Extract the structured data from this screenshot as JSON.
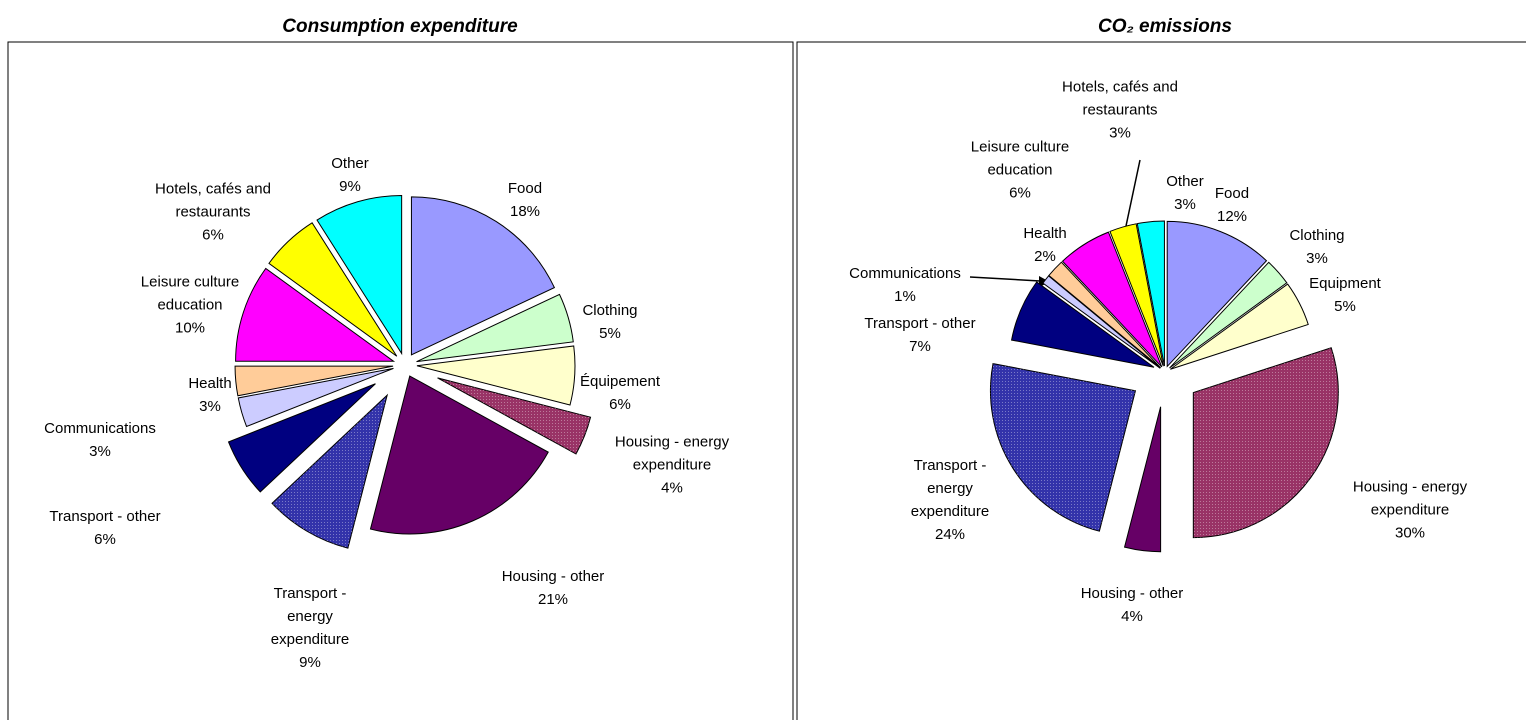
{
  "chart_data": [
    {
      "type": "pie",
      "title": "Consumption expenditure",
      "categories": [
        "Food",
        "Clothing",
        "Équipement",
        "Housing - energy expenditure",
        "Housing - other",
        "Transport - energy expenditure",
        "Transport - other",
        "Communications",
        "Health",
        "Leisure culture education",
        "Hotels, cafés and restaurants",
        "Other"
      ],
      "values": [
        18,
        5,
        6,
        4,
        21,
        9,
        6,
        3,
        3,
        10,
        6,
        9
      ],
      "value_labels": [
        "18%",
        "5%",
        "6%",
        "4%",
        "21%",
        "9%",
        "6%",
        "3%",
        "3%",
        "10%",
        "6%",
        "9%"
      ],
      "colors": [
        "#9999ff",
        "#ccffcc",
        "#ffffcc",
        "#993366",
        "#660066",
        "#3333aa",
        "#000080",
        "#ccccff",
        "#ffcc99",
        "#ff00ff",
        "#ffff00",
        "#00ffff"
      ]
    },
    {
      "type": "pie",
      "title": "CO₂ emissions",
      "categories": [
        "Food",
        "Clothing",
        "Equipment",
        "Housing - energy expenditure",
        "Housing - other",
        "Transport - energy expenditure",
        "Transport - other",
        "Communications",
        "Health",
        "Leisure culture education",
        "Hotels, cafés and restaurants",
        "Other"
      ],
      "values": [
        12,
        3,
        5,
        30,
        4,
        24,
        7,
        1,
        2,
        6,
        3,
        3
      ],
      "value_labels": [
        "12%",
        "3%",
        "5%",
        "30%",
        "4%",
        "24%",
        "7%",
        "1%",
        "2%",
        "6%",
        "3%",
        "3%"
      ],
      "colors": [
        "#9999ff",
        "#ccffcc",
        "#ffffcc",
        "#993366",
        "#660066",
        "#3333aa",
        "#000080",
        "#ccccff",
        "#ffcc99",
        "#ff00ff",
        "#ffff00",
        "#00ffff"
      ]
    }
  ]
}
